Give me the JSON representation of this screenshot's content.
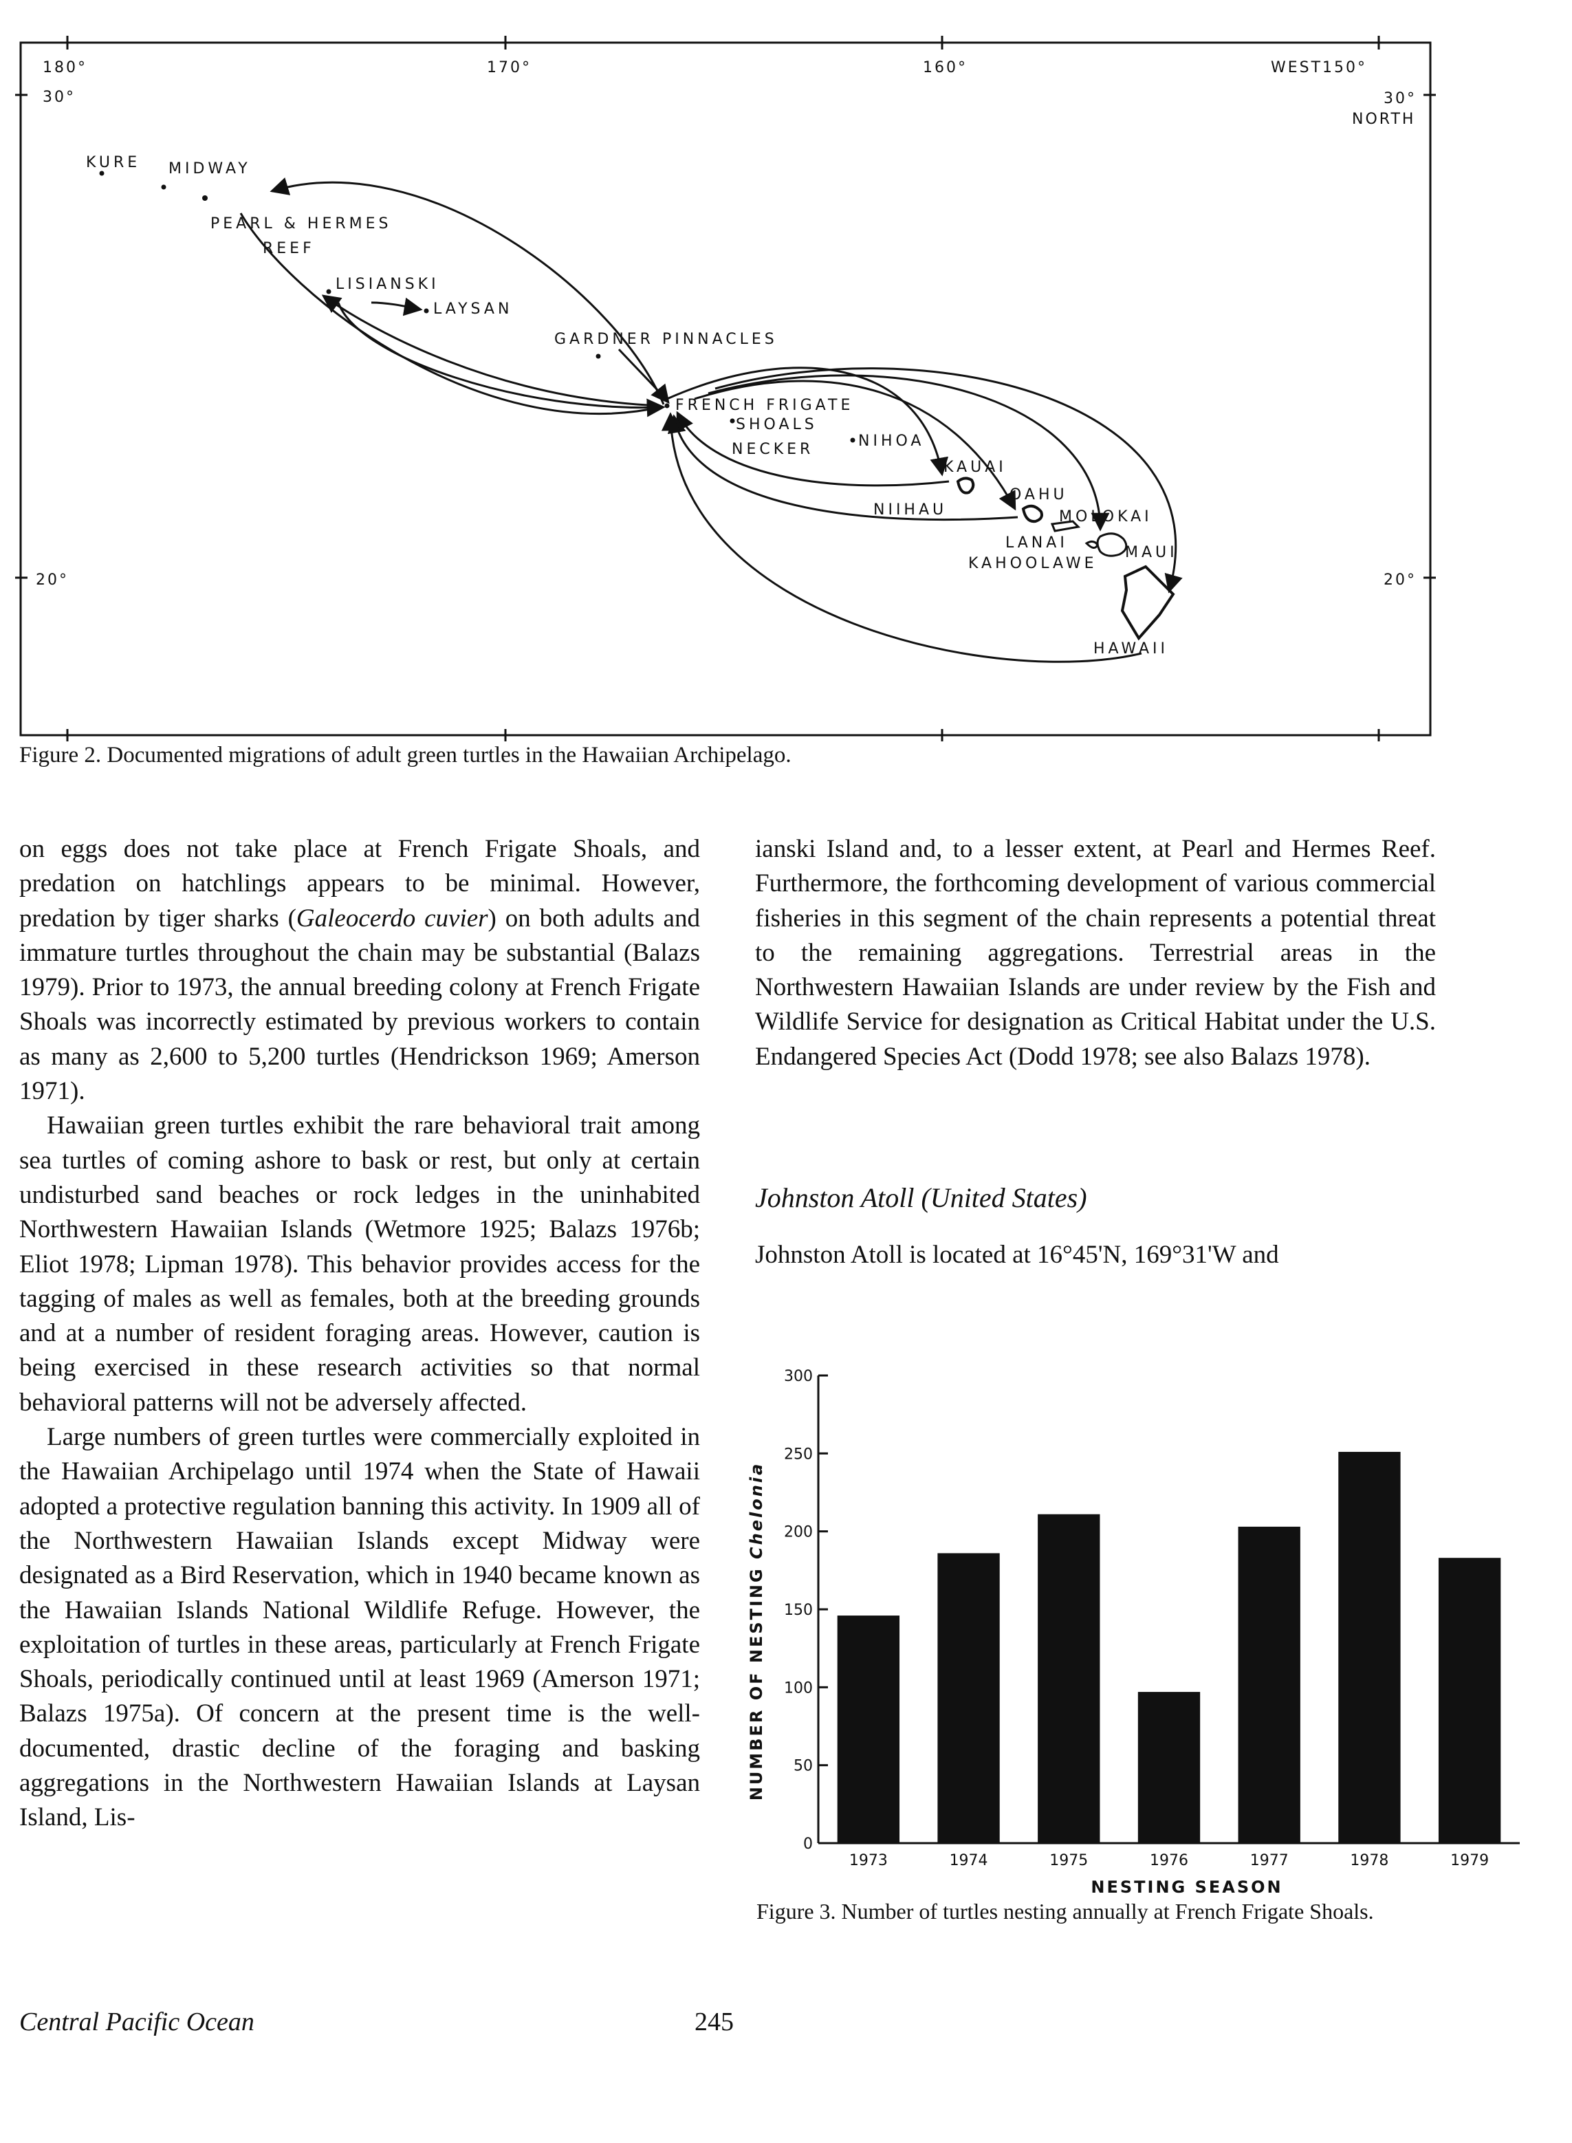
{
  "map": {
    "coords": {
      "lon_180": "180°",
      "lon_170": "170°",
      "lon_160": "160°",
      "lon_150": "WEST150°",
      "lat_30_left": "30°",
      "lat_30_right": "30°",
      "north": "NORTH",
      "lat_20_left": "20°",
      "lat_20_right": "20°"
    },
    "islands": {
      "kure": "KURE",
      "midway": "MIDWAY",
      "pearl_hermes_1": "PEARL & HERMES",
      "pearl_hermes_2": "REEF",
      "lisianski": "LISIANSKI",
      "laysan": "LAYSAN",
      "gardner": "GARDNER PINNACLES",
      "french_frigate_1": "FRENCH FRIGATE",
      "french_frigate_2": "SHOALS",
      "necker": "NECKER",
      "nihoa": "NIHOA",
      "kauai": "KAUAI",
      "niihau": "NIIHAU",
      "oahu": "OAHU",
      "molokai": "MOLOKAI",
      "lanai": "LANAI",
      "maui": "MAUI",
      "kahoolawe": "KAHOOLAWE",
      "hawaii": "HAWAII"
    },
    "caption": "Figure 2. Documented migrations of adult green turtles in the Hawaiian Archipelago."
  },
  "body": {
    "left_p1": "on eggs does not take place at French Frigate Shoals, and predation on hatchlings appears to be minimal. However, predation by tiger sharks (",
    "left_p1_species": "Galeocerdo cuvier",
    "left_p1_b": ") on both adults and immature turtles throughout the chain may be substantial (Balazs 1979). Prior to 1973, the annual breeding colony at French Frigate Shoals was incorrectly estimated by previous workers to contain as many as 2,600 to 5,200 turtles (Hendrickson 1969; Amerson 1971).",
    "left_p2": "Hawaiian green turtles exhibit the rare behavioral trait among sea turtles of coming ashore to bask or rest, but only at certain undisturbed sand beaches or rock ledges in the uninhabited Northwestern Hawaiian Islands (Wetmore 1925; Balazs 1976b; Eliot 1978; Lipman 1978). This behavior provides access for the tagging of males as well as females, both at the breeding grounds and at a number of resident foraging areas. However, caution is being exercised in these research activities so that normal behavioral patterns will not be adversely affected.",
    "left_p3": "Large numbers of green turtles were commercially exploited in the Hawaiian Archipelago until 1974 when the State of Hawaii adopted a protective regulation banning this activity. In 1909 all of the Northwestern Hawaiian Islands except Midway were designated as a Bird Reservation, which in 1940 became known as the Hawaiian Islands National Wildlife Refuge. However, the exploitation of turtles in these areas, particularly at French Frigate Shoals, periodically continued until at least 1969 (Amerson 1971; Balazs 1975a). Of concern at the present time is the well-documented, drastic decline of the foraging and basking aggregations in the Northwestern Hawaiian Islands at Laysan Island, Lis-",
    "right_p1": "ianski Island and, to a lesser extent, at Pearl and Hermes Reef. Furthermore, the forthcoming development of various commercial fisheries in this segment of the chain represents a potential threat to the remaining aggregations. Terrestrial areas in the Northwestern Hawaiian Islands are under review by the Fish and Wildlife Service for designation as Critical Habitat under the U.S. Endangered Species Act (Dodd 1978; see also Balazs 1978).",
    "section_heading": "Johnston Atoll (United States)",
    "right_p2": "Johnston Atoll is located at 16°45'N, 169°31'W and"
  },
  "chart_data": {
    "type": "bar",
    "categories": [
      "1973",
      "1974",
      "1975",
      "1976",
      "1977",
      "1978",
      "1979"
    ],
    "values": [
      146,
      186,
      211,
      97,
      203,
      251,
      183
    ],
    "xlabel": "NESTING SEASON",
    "ylabel_prefix": "NUMBER OF NESTING ",
    "ylabel_italic": "Chelonia",
    "ylim": [
      0,
      300
    ],
    "yticks": [
      "0",
      "50",
      "100",
      "150",
      "200",
      "250",
      "300"
    ],
    "bar_color": "#111111",
    "grid": false,
    "caption": "Figure 3. Number of turtles nesting annually at French Frigate Shoals."
  },
  "footer": {
    "section": "Central Pacific Ocean",
    "page_number": "245"
  }
}
